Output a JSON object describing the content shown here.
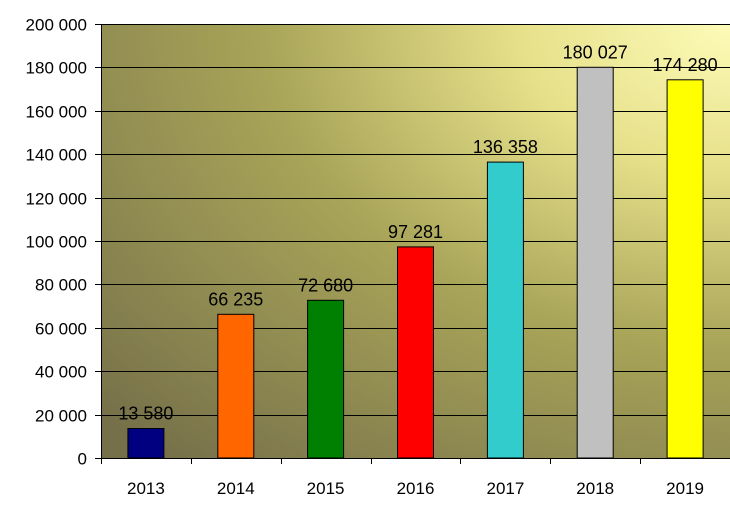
{
  "chart_data": {
    "type": "bar",
    "title": "",
    "xlabel": "",
    "ylabel": "",
    "categories": [
      "2013",
      "2014",
      "2015",
      "2016",
      "2017",
      "2018",
      "2019"
    ],
    "values": [
      13580,
      66235,
      72680,
      97281,
      136358,
      180027,
      174280
    ],
    "value_labels": [
      "13 580",
      "66 235",
      "72 680",
      "97 281",
      "136 358",
      "180 027",
      "174 280"
    ],
    "bar_colors": [
      "#000080",
      "#FF6600",
      "#008000",
      "#FF0000",
      "#33CCCC",
      "#C0C0C0",
      "#FFFF00"
    ],
    "ylim": [
      0,
      200000
    ],
    "yticks": [
      0,
      20000,
      40000,
      60000,
      80000,
      100000,
      120000,
      140000,
      160000,
      180000,
      200000
    ],
    "ytick_labels": [
      "0",
      "20 000",
      "40 000",
      "60 000",
      "80 000",
      "100 000",
      "120 000",
      "140 000",
      "160 000",
      "180 000",
      "200 000"
    ],
    "grid": true,
    "legend": "none",
    "plot_background": "gradient olive to light yellow"
  }
}
